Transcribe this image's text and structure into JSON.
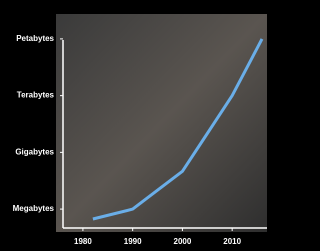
{
  "chart_data": {
    "type": "line",
    "x": [
      1982,
      1990,
      1995,
      2000,
      2005,
      2010,
      2014,
      2016
    ],
    "series": [
      {
        "color": "#6aaee8",
        "values": [
          300000,
          1000000,
          10000000,
          100000000,
          10000000000,
          1000000000000,
          100000000000000,
          1000000000000000
        ]
      }
    ],
    "xlim": [
      1976,
      2017
    ],
    "xticks": [
      1980,
      1990,
      2000,
      2010
    ],
    "log_scale_y": true,
    "ylim": [
      100000,
      10000000000000000
    ],
    "yticks": [
      {
        "value": 1000000,
        "label": "Megabytes"
      },
      {
        "value": 1000000000,
        "label": "Gigabytes"
      },
      {
        "value": 1000000000000,
        "label": "Terabytes"
      },
      {
        "value": 1000000000000000,
        "label": "Petabytes"
      }
    ]
  }
}
